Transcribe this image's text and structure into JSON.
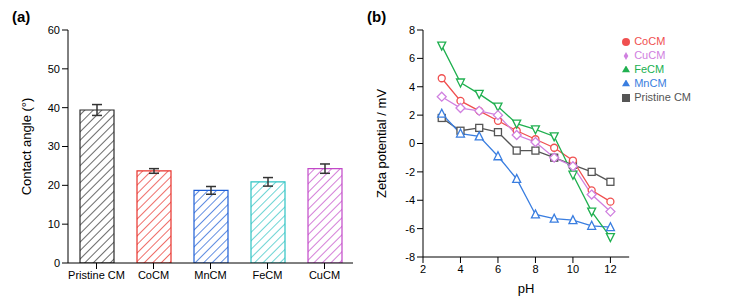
{
  "chart_data": [
    {
      "type": "bar",
      "title": "(a)",
      "categories": [
        "Pristine CM",
        "CoCM",
        "MnCM",
        "FeCM",
        "CuCM"
      ],
      "values": [
        39.4,
        23.7,
        18.7,
        20.9,
        24.3
      ],
      "errors": [
        1.4,
        0.6,
        1.0,
        1.1,
        1.2
      ],
      "colors": [
        "#2b2b2b",
        "#e8312a",
        "#1f5fd6",
        "#2fc3c3",
        "#c248c8"
      ],
      "ylabel": "Contact angle (°)",
      "ylim": [
        0,
        60
      ],
      "yticks": [
        0,
        10,
        20,
        30,
        40,
        50,
        60
      ]
    },
    {
      "type": "line",
      "title": "(b)",
      "x": [
        3,
        4,
        5,
        6,
        7,
        8,
        9,
        10,
        11,
        12
      ],
      "series": [
        {
          "name": "Pristine CM",
          "color": "#555555",
          "marker": "square",
          "values": [
            1.8,
            0.9,
            1.1,
            0.8,
            -0.5,
            -0.5,
            -1.0,
            -1.5,
            -2.0,
            -2.7
          ]
        },
        {
          "name": "CoCM",
          "color": "#f05050",
          "marker": "circle",
          "values": [
            4.6,
            3.0,
            2.3,
            1.6,
            0.9,
            0.3,
            -0.3,
            -1.2,
            -3.3,
            -4.1
          ]
        },
        {
          "name": "MnCM",
          "color": "#3a7ee0",
          "marker": "triangle",
          "values": [
            2.1,
            0.7,
            0.5,
            -0.9,
            -2.5,
            -5.0,
            -5.3,
            -5.4,
            -5.8,
            -5.9
          ]
        },
        {
          "name": "FeCM",
          "color": "#20b050",
          "marker": "triangle-down",
          "values": [
            6.9,
            4.3,
            3.5,
            2.6,
            1.4,
            1.0,
            0.5,
            -2.2,
            -4.8,
            -6.6
          ]
        },
        {
          "name": "CuCM",
          "color": "#d080e0",
          "marker": "diamond",
          "values": [
            3.3,
            2.5,
            2.3,
            2.0,
            0.6,
            0.1,
            -1.0,
            -1.6,
            -3.6,
            -4.8
          ]
        }
      ],
      "xlabel": "pH",
      "ylabel": "Zeta potential / mV",
      "xlim": [
        2,
        13
      ],
      "xticks": [
        2,
        4,
        6,
        8,
        10,
        12
      ],
      "ylim": [
        -8,
        8
      ],
      "yticks": [
        -8,
        -6,
        -4,
        -2,
        0,
        2,
        4,
        6,
        8
      ],
      "legend": "upper right"
    }
  ]
}
